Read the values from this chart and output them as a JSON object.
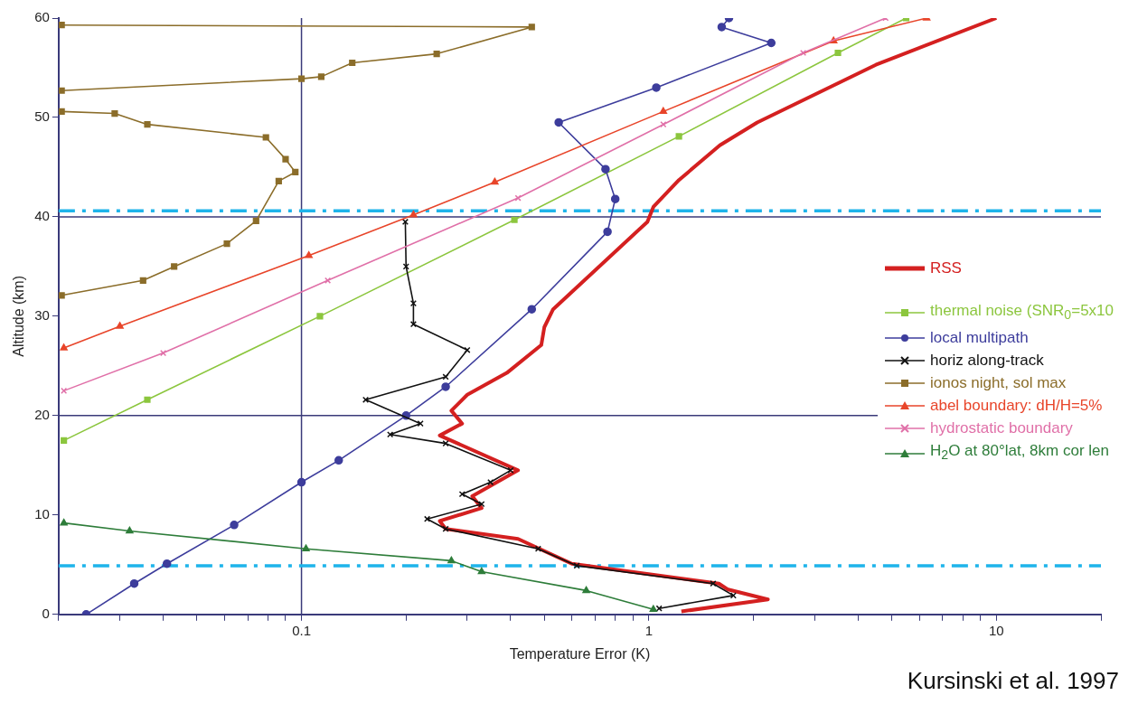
{
  "chart_data": {
    "type": "line",
    "xlabel": "Temperature Error (K)",
    "ylabel": "Altitude (km)",
    "log": "x",
    "xlim": [
      0.02,
      20
    ],
    "ylim": [
      0,
      60
    ],
    "xticks": [
      {
        "value": 0.02,
        "label": null
      },
      {
        "value": 0.03,
        "label": null
      },
      {
        "value": 0.04,
        "label": null
      },
      {
        "value": 0.05,
        "label": null
      },
      {
        "value": 0.06,
        "label": null
      },
      {
        "value": 0.07,
        "label": null
      },
      {
        "value": 0.08,
        "label": null
      },
      {
        "value": 0.09,
        "label": null
      },
      0.1,
      {
        "value": 0.2,
        "label": null
      },
      {
        "value": 0.3,
        "label": null
      },
      {
        "value": 0.4,
        "label": null
      },
      {
        "value": 0.5,
        "label": null
      },
      {
        "value": 0.6,
        "label": null
      },
      {
        "value": 0.7,
        "label": null
      },
      {
        "value": 0.8,
        "label": null
      },
      {
        "value": 0.9,
        "label": null
      },
      1,
      {
        "value": 2,
        "label": null
      },
      {
        "value": 3,
        "label": null
      },
      {
        "value": 4,
        "label": null
      },
      {
        "value": 5,
        "label": null
      },
      {
        "value": 6,
        "label": null
      },
      {
        "value": 7,
        "label": null
      },
      {
        "value": 8,
        "label": null
      },
      {
        "value": 9,
        "label": null
      },
      10,
      {
        "value": 20,
        "label": null
      }
    ],
    "yticks": [
      0,
      10,
      20,
      30,
      40,
      50,
      60
    ],
    "grid": false,
    "legend": "right",
    "series": [
      {
        "name": "RSS",
        "color": "#d42020",
        "marker": "none",
        "x": [
          10,
          4.5,
          2.05,
          1.6,
          1.22,
          1.03,
          0.99,
          0.53,
          0.5,
          0.49,
          0.39,
          0.3,
          0.27,
          0.29,
          0.25,
          0.42,
          0.31,
          0.33,
          0.25,
          0.26,
          0.42,
          0.6,
          1.59,
          1.69,
          2.2,
          1.24
        ],
        "values": [
          60,
          55.3,
          49.5,
          47.2,
          43.7,
          41,
          39.5,
          30.7,
          28.9,
          27.1,
          24.3,
          22.1,
          20.5,
          19.2,
          18,
          14.5,
          11.9,
          10.7,
          9.4,
          8.6,
          7.6,
          5.1,
          3.1,
          2.5,
          1.5,
          0.3
        ]
      },
      {
        "name": "thermal noise (SNR$_{0}$=5x10",
        "color": "#8cc63e",
        "marker": "square",
        "x": [
          5.5,
          3.5,
          1.22,
          0.41,
          0.113,
          0.036,
          0.0207
        ],
        "values": [
          60,
          56.5,
          48.1,
          39.7,
          30,
          21.6,
          17.5
        ]
      },
      {
        "name": "local multipath",
        "color": "#3d3d9c",
        "marker": "circle",
        "x": [
          1.7,
          1.62,
          2.25,
          1.05,
          0.55,
          0.75,
          0.8,
          0.76,
          0.46,
          0.26,
          0.2,
          0.128,
          0.1,
          0.064,
          0.041,
          0.033,
          0.024
        ],
        "values": [
          60,
          59.1,
          57.5,
          53,
          49.5,
          44.8,
          41.8,
          38.5,
          30.7,
          22.9,
          20,
          15.5,
          13.3,
          9,
          5.1,
          3.1,
          0
        ]
      },
      {
        "name": "horiz along-track",
        "color": "#111111",
        "marker": "cross",
        "x": [
          0.199,
          0.2,
          0.21,
          0.21,
          0.3,
          0.26,
          0.153,
          0.22,
          0.18,
          0.26,
          0.4,
          0.35,
          0.29,
          0.33,
          0.23,
          0.26,
          0.48,
          0.62,
          1.53,
          1.75,
          1.07
        ],
        "values": [
          39.5,
          35,
          31.3,
          29.2,
          26.6,
          23.9,
          21.6,
          19.2,
          18.1,
          17.2,
          14.5,
          13.3,
          12.1,
          11.1,
          9.6,
          8.6,
          6.6,
          4.9,
          3.1,
          1.9,
          0.6
        ]
      },
      {
        "name": "ionos night, sol max",
        "color": "#8b6d2a",
        "marker": "square",
        "x": [
          0.0204,
          0.46,
          0.245,
          0.14,
          0.114,
          0.1,
          0.0204,
          null,
          0.0204,
          0.029,
          0.036,
          0.079,
          0.09,
          0.096,
          0.086,
          0.074,
          0.061,
          0.043,
          0.035,
          0.0204
        ],
        "values": [
          59.3,
          59.1,
          56.4,
          55.5,
          54.1,
          53.9,
          52.7,
          null,
          50.6,
          50.4,
          49.3,
          48,
          45.8,
          44.5,
          43.6,
          39.6,
          37.3,
          35,
          33.6,
          32.1
        ]
      },
      {
        "name": "abel boundary: dH/H=5%",
        "color": "#e8452a",
        "marker": "triangle",
        "x": [
          6.3,
          3.4,
          1.1,
          0.36,
          0.21,
          0.105,
          0.03,
          0.0207
        ],
        "values": [
          60,
          57.7,
          50.6,
          43.5,
          40.2,
          36.1,
          29,
          26.8
        ]
      },
      {
        "name": "hydrostatic boundary",
        "color": "#e070a8",
        "marker": "cross",
        "x": [
          4.8,
          2.78,
          1.1,
          0.42,
          0.119,
          0.04,
          0.0207
        ],
        "values": [
          60,
          56.5,
          49.3,
          41.9,
          33.6,
          26.3,
          22.5
        ]
      },
      {
        "name": "H$_{2}$O at 80°lat, 8km cor len",
        "color": "#2e7d3a",
        "marker": "triangle",
        "x": [
          0.0207,
          0.032,
          0.103,
          0.27,
          0.33,
          0.66,
          1.03
        ],
        "values": [
          9.2,
          8.4,
          6.6,
          5.4,
          4.3,
          2.4,
          0.5
        ]
      }
    ],
    "ref_lines": [
      {
        "axis": "y",
        "value": 40,
        "color": "#3a3a7a",
        "line_style": "solid"
      },
      {
        "axis": "y",
        "value": 20,
        "color": "#3a3a7a",
        "line_style": "solid"
      },
      {
        "axis": "x",
        "value": 0.1,
        "color": "#3a3a7a",
        "line_style": "solid"
      },
      {
        "axis": "y",
        "value": 40.6,
        "color": "#1eb4ea",
        "line_style": "dashed"
      },
      {
        "axis": "y",
        "value": 4.9,
        "color": "#1eb4ea",
        "line_style": "dashed"
      }
    ],
    "annotations": [
      "Kursinski et al. 1997"
    ]
  }
}
